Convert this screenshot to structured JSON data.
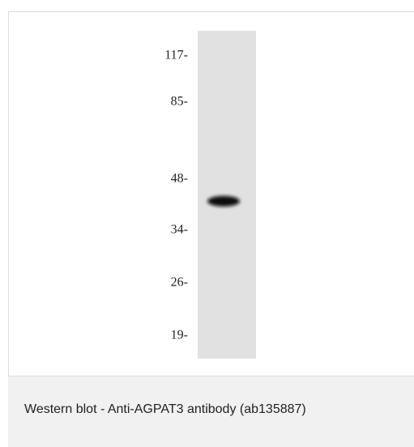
{
  "image": {
    "markers": [
      "117-",
      "85-",
      "48-",
      "34-",
      "26-",
      "19-"
    ]
  },
  "caption": "Western blot - Anti-AGPAT3 antibody (ab135887)"
}
